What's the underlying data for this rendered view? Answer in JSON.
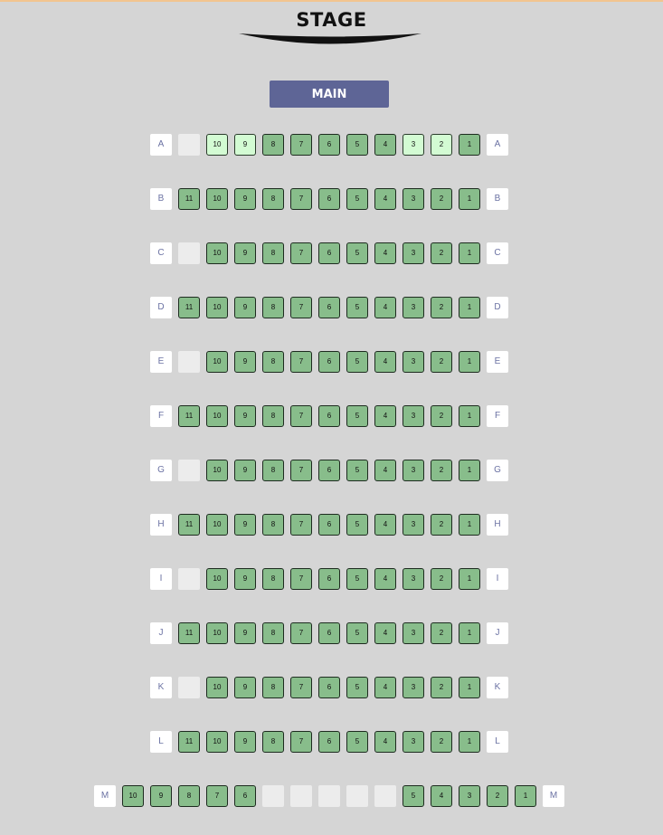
{
  "stage_label": "STAGE",
  "section_label": "MAIN",
  "colors": {
    "available": "#88bd8b",
    "selected": "#d3fbd3",
    "empty": "#ececec",
    "section_button": "#5e6596",
    "row_label_text": "#6b72a3"
  },
  "rows": [
    {
      "label": "A",
      "seats": [
        {
          "n": null,
          "s": "empty"
        },
        {
          "n": "10",
          "s": "selected"
        },
        {
          "n": "9",
          "s": "selected"
        },
        {
          "n": "8",
          "s": "available"
        },
        {
          "n": "7",
          "s": "available"
        },
        {
          "n": "6",
          "s": "available"
        },
        {
          "n": "5",
          "s": "available"
        },
        {
          "n": "4",
          "s": "available"
        },
        {
          "n": "3",
          "s": "selected"
        },
        {
          "n": "2",
          "s": "selected"
        },
        {
          "n": "1",
          "s": "available"
        }
      ]
    },
    {
      "label": "B",
      "seats": [
        {
          "n": "11",
          "s": "available"
        },
        {
          "n": "10",
          "s": "available"
        },
        {
          "n": "9",
          "s": "available"
        },
        {
          "n": "8",
          "s": "available"
        },
        {
          "n": "7",
          "s": "available"
        },
        {
          "n": "6",
          "s": "available"
        },
        {
          "n": "5",
          "s": "available"
        },
        {
          "n": "4",
          "s": "available"
        },
        {
          "n": "3",
          "s": "available"
        },
        {
          "n": "2",
          "s": "available"
        },
        {
          "n": "1",
          "s": "available"
        }
      ]
    },
    {
      "label": "C",
      "seats": [
        {
          "n": null,
          "s": "empty"
        },
        {
          "n": "10",
          "s": "available"
        },
        {
          "n": "9",
          "s": "available"
        },
        {
          "n": "8",
          "s": "available"
        },
        {
          "n": "7",
          "s": "available"
        },
        {
          "n": "6",
          "s": "available"
        },
        {
          "n": "5",
          "s": "available"
        },
        {
          "n": "4",
          "s": "available"
        },
        {
          "n": "3",
          "s": "available"
        },
        {
          "n": "2",
          "s": "available"
        },
        {
          "n": "1",
          "s": "available"
        }
      ]
    },
    {
      "label": "D",
      "seats": [
        {
          "n": "11",
          "s": "available"
        },
        {
          "n": "10",
          "s": "available"
        },
        {
          "n": "9",
          "s": "available"
        },
        {
          "n": "8",
          "s": "available"
        },
        {
          "n": "7",
          "s": "available"
        },
        {
          "n": "6",
          "s": "available"
        },
        {
          "n": "5",
          "s": "available"
        },
        {
          "n": "4",
          "s": "available"
        },
        {
          "n": "3",
          "s": "available"
        },
        {
          "n": "2",
          "s": "available"
        },
        {
          "n": "1",
          "s": "available"
        }
      ]
    },
    {
      "label": "E",
      "seats": [
        {
          "n": null,
          "s": "empty"
        },
        {
          "n": "10",
          "s": "available"
        },
        {
          "n": "9",
          "s": "available"
        },
        {
          "n": "8",
          "s": "available"
        },
        {
          "n": "7",
          "s": "available"
        },
        {
          "n": "6",
          "s": "available"
        },
        {
          "n": "5",
          "s": "available"
        },
        {
          "n": "4",
          "s": "available"
        },
        {
          "n": "3",
          "s": "available"
        },
        {
          "n": "2",
          "s": "available"
        },
        {
          "n": "1",
          "s": "available"
        }
      ]
    },
    {
      "label": "F",
      "seats": [
        {
          "n": "11",
          "s": "available"
        },
        {
          "n": "10",
          "s": "available"
        },
        {
          "n": "9",
          "s": "available"
        },
        {
          "n": "8",
          "s": "available"
        },
        {
          "n": "7",
          "s": "available"
        },
        {
          "n": "6",
          "s": "available"
        },
        {
          "n": "5",
          "s": "available"
        },
        {
          "n": "4",
          "s": "available"
        },
        {
          "n": "3",
          "s": "available"
        },
        {
          "n": "2",
          "s": "available"
        },
        {
          "n": "1",
          "s": "available"
        }
      ]
    },
    {
      "label": "G",
      "seats": [
        {
          "n": null,
          "s": "empty"
        },
        {
          "n": "10",
          "s": "available"
        },
        {
          "n": "9",
          "s": "available"
        },
        {
          "n": "8",
          "s": "available"
        },
        {
          "n": "7",
          "s": "available"
        },
        {
          "n": "6",
          "s": "available"
        },
        {
          "n": "5",
          "s": "available"
        },
        {
          "n": "4",
          "s": "available"
        },
        {
          "n": "3",
          "s": "available"
        },
        {
          "n": "2",
          "s": "available"
        },
        {
          "n": "1",
          "s": "available"
        }
      ]
    },
    {
      "label": "H",
      "seats": [
        {
          "n": "11",
          "s": "available"
        },
        {
          "n": "10",
          "s": "available"
        },
        {
          "n": "9",
          "s": "available"
        },
        {
          "n": "8",
          "s": "available"
        },
        {
          "n": "7",
          "s": "available"
        },
        {
          "n": "6",
          "s": "available"
        },
        {
          "n": "5",
          "s": "available"
        },
        {
          "n": "4",
          "s": "available"
        },
        {
          "n": "3",
          "s": "available"
        },
        {
          "n": "2",
          "s": "available"
        },
        {
          "n": "1",
          "s": "available"
        }
      ]
    },
    {
      "label": "I",
      "seats": [
        {
          "n": null,
          "s": "empty"
        },
        {
          "n": "10",
          "s": "available"
        },
        {
          "n": "9",
          "s": "available"
        },
        {
          "n": "8",
          "s": "available"
        },
        {
          "n": "7",
          "s": "available"
        },
        {
          "n": "6",
          "s": "available"
        },
        {
          "n": "5",
          "s": "available"
        },
        {
          "n": "4",
          "s": "available"
        },
        {
          "n": "3",
          "s": "available"
        },
        {
          "n": "2",
          "s": "available"
        },
        {
          "n": "1",
          "s": "available"
        }
      ]
    },
    {
      "label": "J",
      "seats": [
        {
          "n": "11",
          "s": "available"
        },
        {
          "n": "10",
          "s": "available"
        },
        {
          "n": "9",
          "s": "available"
        },
        {
          "n": "8",
          "s": "available"
        },
        {
          "n": "7",
          "s": "available"
        },
        {
          "n": "6",
          "s": "available"
        },
        {
          "n": "5",
          "s": "available"
        },
        {
          "n": "4",
          "s": "available"
        },
        {
          "n": "3",
          "s": "available"
        },
        {
          "n": "2",
          "s": "available"
        },
        {
          "n": "1",
          "s": "available"
        }
      ]
    },
    {
      "label": "K",
      "seats": [
        {
          "n": null,
          "s": "empty"
        },
        {
          "n": "10",
          "s": "available"
        },
        {
          "n": "9",
          "s": "available"
        },
        {
          "n": "8",
          "s": "available"
        },
        {
          "n": "7",
          "s": "available"
        },
        {
          "n": "6",
          "s": "available"
        },
        {
          "n": "5",
          "s": "available"
        },
        {
          "n": "4",
          "s": "available"
        },
        {
          "n": "3",
          "s": "available"
        },
        {
          "n": "2",
          "s": "available"
        },
        {
          "n": "1",
          "s": "available"
        }
      ]
    },
    {
      "label": "L",
      "seats": [
        {
          "n": "11",
          "s": "available"
        },
        {
          "n": "10",
          "s": "available"
        },
        {
          "n": "9",
          "s": "available"
        },
        {
          "n": "8",
          "s": "available"
        },
        {
          "n": "7",
          "s": "available"
        },
        {
          "n": "6",
          "s": "available"
        },
        {
          "n": "5",
          "s": "available"
        },
        {
          "n": "4",
          "s": "available"
        },
        {
          "n": "3",
          "s": "available"
        },
        {
          "n": "2",
          "s": "available"
        },
        {
          "n": "1",
          "s": "available"
        }
      ]
    },
    {
      "label": "M",
      "seats": [
        {
          "n": "10",
          "s": "available"
        },
        {
          "n": "9",
          "s": "available"
        },
        {
          "n": "8",
          "s": "available"
        },
        {
          "n": "7",
          "s": "available"
        },
        {
          "n": "6",
          "s": "available"
        },
        {
          "n": null,
          "s": "empty"
        },
        {
          "n": null,
          "s": "empty"
        },
        {
          "n": null,
          "s": "empty"
        },
        {
          "n": null,
          "s": "empty"
        },
        {
          "n": null,
          "s": "empty"
        },
        {
          "n": "5",
          "s": "available"
        },
        {
          "n": "4",
          "s": "available"
        },
        {
          "n": "3",
          "s": "available"
        },
        {
          "n": "2",
          "s": "available"
        },
        {
          "n": "1",
          "s": "available"
        }
      ]
    }
  ]
}
